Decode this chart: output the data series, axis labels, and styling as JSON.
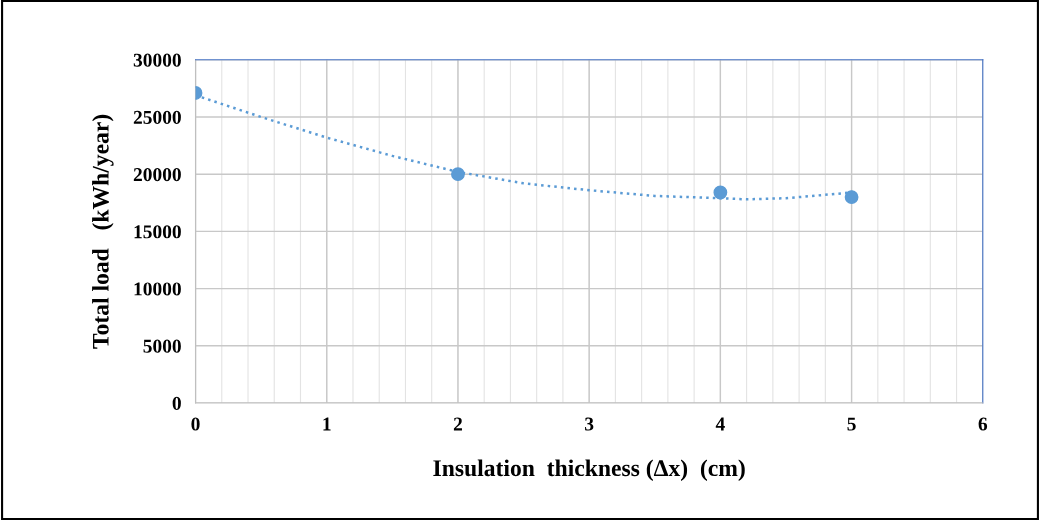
{
  "chart_data": {
    "type": "scatter",
    "xlabel": "Insulation  thickness (Δx)  (cm)",
    "ylabel": "Total load   (kWh/year)",
    "series": [
      {
        "color": "#5b9bd5",
        "x": [
          0,
          2,
          4,
          5
        ],
        "values": [
          27100,
          20000,
          18400,
          18000
        ],
        "marker": "circle"
      },
      {
        "type": "line",
        "color": "#5b9bd5",
        "line_style": "dotted",
        "marker": "none",
        "x": [
          0,
          0.5,
          1,
          1.5,
          2,
          2.5,
          3,
          3.5,
          4,
          4.2,
          4.5,
          5
        ],
        "values": [
          26900,
          25000,
          23200,
          21600,
          20200,
          19200,
          18600,
          18100,
          17900,
          17800,
          17900,
          18400
        ]
      }
    ],
    "xlim": [
      0,
      6
    ],
    "xticks": [
      0,
      1,
      2,
      3,
      4,
      5,
      6
    ],
    "ylim": [
      0,
      30000
    ],
    "yticks": [
      0,
      5000,
      10000,
      15000,
      20000,
      25000,
      30000
    ],
    "grid": true
  }
}
